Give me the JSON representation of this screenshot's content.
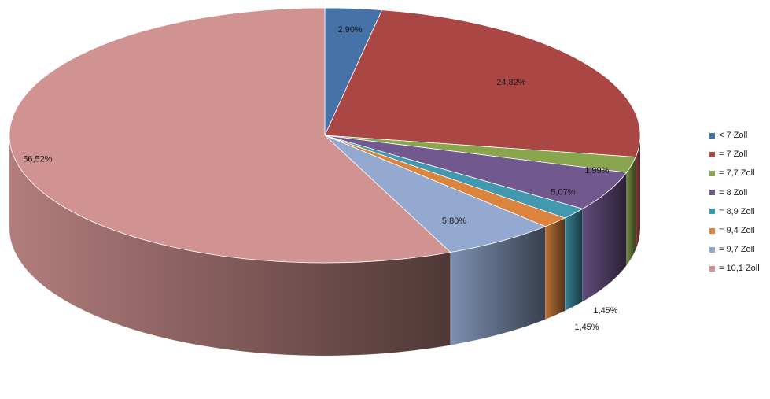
{
  "chart_data": {
    "type": "pie",
    "style": "3d",
    "title": "",
    "legend_position": "right",
    "categories": [
      "< 7 Zoll",
      "= 7 Zoll",
      "= 7,7 Zoll",
      "= 8 Zoll",
      "= 8,9 Zoll",
      "= 9,4 Zoll",
      "= 9,7 Zoll",
      "= 10,1 Zoll"
    ],
    "values": [
      2.9,
      24.82,
      1.99,
      5.07,
      1.45,
      1.45,
      5.8,
      56.52
    ],
    "data_labels": [
      "2,90%",
      "24,82%",
      "1,99%",
      "5,07%",
      "1,45%",
      "1,45%",
      "5,80%",
      "56,52%"
    ],
    "colors": [
      "#4572A7",
      "#AA4643",
      "#89A54E",
      "#71588F",
      "#4198AF",
      "#DB843D",
      "#93A9CF",
      "#D19392"
    ]
  }
}
